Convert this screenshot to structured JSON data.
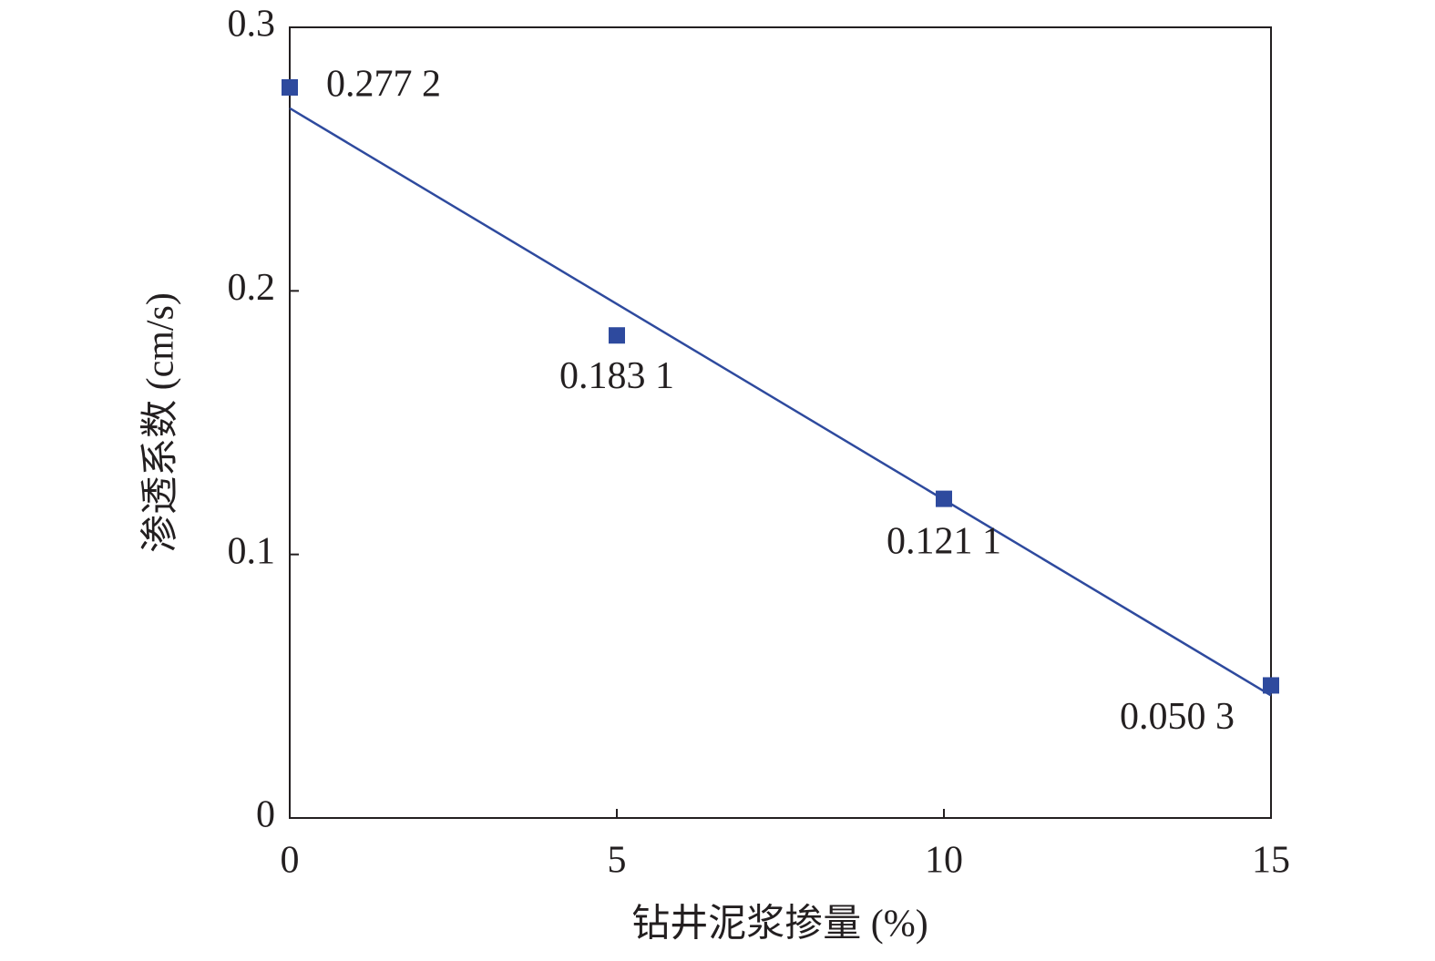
{
  "chart_data": {
    "type": "scatter",
    "xlabel": "钻井泥浆掺量 (%)",
    "ylabel": "渗透系数 (cm/s)",
    "x": [
      0,
      5,
      10,
      15
    ],
    "values": [
      0.2772,
      0.1831,
      0.1211,
      0.0503
    ],
    "value_labels": [
      "0.277 2",
      "0.183 1",
      "0.121 1",
      "0.050 3"
    ],
    "color": "#2e4a9e",
    "trendline": {
      "x": [
        0,
        15
      ],
      "values": [
        0.2693,
        0.0465
      ],
      "color": "#2e4a9e"
    },
    "xlim": [
      0,
      15
    ],
    "xticks": [
      0,
      5,
      10,
      15
    ],
    "ylim": [
      0,
      0.3
    ],
    "yticks": [
      0,
      0.1,
      0.2,
      0.3
    ],
    "grid": false
  }
}
